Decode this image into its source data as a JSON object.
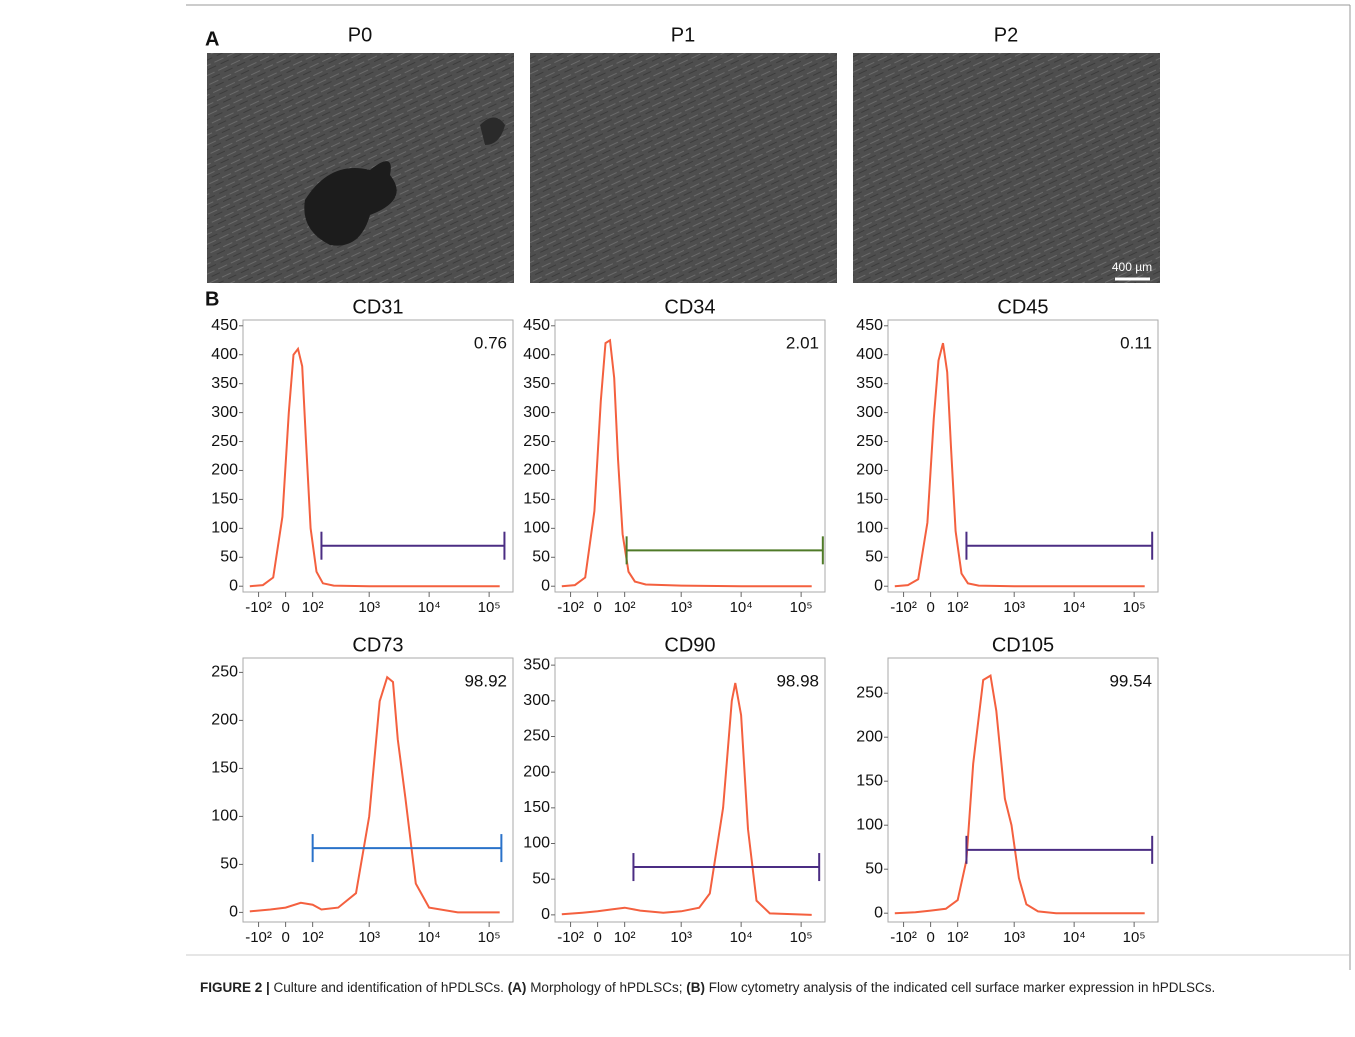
{
  "panel_labels": [
    "A",
    "B"
  ],
  "micrographs": [
    {
      "label": "P0"
    },
    {
      "label": "P1"
    },
    {
      "label": "P2"
    }
  ],
  "scale_bar": "400 µm",
  "chart_data": [
    {
      "type": "line",
      "title": "CD31",
      "color": "#f4603f",
      "x": [
        -150,
        -80,
        -40,
        -10,
        10,
        25,
        40,
        55,
        70,
        90,
        120,
        160,
        250,
        1000,
        10000,
        150000
      ],
      "values": [
        0,
        2,
        15,
        120,
        300,
        400,
        410,
        380,
        250,
        100,
        25,
        5,
        1,
        0,
        0,
        0
      ],
      "xlim": [
        -200,
        250000
      ],
      "ylim": [
        -10,
        460
      ],
      "xticks": [
        {
          "value": -100,
          "label": "-10²"
        },
        0,
        {
          "value": 100,
          "label": "10²"
        },
        {
          "value": 1000,
          "label": "10³"
        },
        {
          "value": 10000,
          "label": "10⁴"
        },
        {
          "value": 100000,
          "label": "10⁵"
        }
      ],
      "yticks": [
        0,
        50,
        100,
        150,
        200,
        250,
        300,
        350,
        400,
        450
      ],
      "gate": {
        "range": [
          150,
          180000
        ],
        "level": 70,
        "color": "#4b2d83",
        "value": 0.76
      }
    },
    {
      "type": "line",
      "title": "CD34",
      "color": "#f4603f",
      "x": [
        -150,
        -80,
        -40,
        -10,
        10,
        25,
        40,
        55,
        70,
        90,
        120,
        160,
        250,
        1000,
        10000,
        150000
      ],
      "values": [
        0,
        2,
        15,
        130,
        320,
        420,
        425,
        360,
        220,
        90,
        25,
        8,
        3,
        1,
        0,
        0
      ],
      "xlim": [
        -200,
        250000
      ],
      "ylim": [
        -10,
        460
      ],
      "xticks": [
        {
          "value": -100,
          "label": "-10²"
        },
        0,
        {
          "value": 100,
          "label": "10²"
        },
        {
          "value": 1000,
          "label": "10³"
        },
        {
          "value": 10000,
          "label": "10⁴"
        },
        {
          "value": 100000,
          "label": "10⁵"
        }
      ],
      "yticks": [
        0,
        50,
        100,
        150,
        200,
        250,
        300,
        350,
        400,
        450
      ],
      "gate": {
        "range": [
          110,
          230000
        ],
        "level": 62,
        "color": "#4f7a28",
        "value": 2.01
      }
    },
    {
      "type": "line",
      "title": "CD45",
      "color": "#f4603f",
      "x": [
        -150,
        -80,
        -40,
        -10,
        10,
        25,
        40,
        55,
        70,
        90,
        120,
        160,
        250,
        1000,
        10000,
        150000
      ],
      "values": [
        0,
        2,
        12,
        110,
        290,
        390,
        420,
        370,
        240,
        95,
        22,
        5,
        1,
        0,
        0,
        0
      ],
      "xlim": [
        -200,
        250000
      ],
      "ylim": [
        -10,
        460
      ],
      "xticks": [
        {
          "value": -100,
          "label": "-10²"
        },
        0,
        {
          "value": 100,
          "label": "10²"
        },
        {
          "value": 1000,
          "label": "10³"
        },
        {
          "value": 10000,
          "label": "10⁴"
        },
        {
          "value": 100000,
          "label": "10⁵"
        }
      ],
      "yticks": [
        0,
        50,
        100,
        150,
        200,
        250,
        300,
        350,
        400,
        450
      ],
      "gate": {
        "range": [
          150,
          200000
        ],
        "level": 70,
        "color": "#4b2d83",
        "value": 0.11
      }
    },
    {
      "type": "line",
      "title": "CD73",
      "color": "#f4603f",
      "x": [
        -150,
        -50,
        0,
        50,
        100,
        150,
        300,
        600,
        1000,
        1500,
        2000,
        2500,
        3000,
        4000,
        6000,
        10000,
        30000,
        150000
      ],
      "values": [
        1,
        3,
        5,
        10,
        8,
        3,
        5,
        20,
        100,
        220,
        245,
        240,
        180,
        120,
        30,
        5,
        0,
        0
      ],
      "xlim": [
        -200,
        250000
      ],
      "ylim": [
        -10,
        265
      ],
      "xticks": [
        {
          "value": -100,
          "label": "-10²"
        },
        0,
        {
          "value": 100,
          "label": "10²"
        },
        {
          "value": 1000,
          "label": "10³"
        },
        {
          "value": 10000,
          "label": "10⁴"
        },
        {
          "value": 100000,
          "label": "10⁵"
        }
      ],
      "yticks": [
        0,
        50,
        100,
        150,
        200,
        250
      ],
      "gate": {
        "range": [
          100,
          160000
        ],
        "level": 67,
        "color": "#2a72c9",
        "value": 98.92
      }
    },
    {
      "type": "line",
      "title": "CD90",
      "color": "#f4603f",
      "x": [
        -150,
        -50,
        0,
        50,
        100,
        200,
        500,
        1000,
        2000,
        3000,
        5000,
        7000,
        8000,
        10000,
        13000,
        18000,
        30000,
        150000
      ],
      "values": [
        1,
        3,
        5,
        8,
        10,
        6,
        3,
        5,
        10,
        30,
        150,
        300,
        325,
        280,
        120,
        20,
        2,
        0
      ],
      "xlim": [
        -200,
        250000
      ],
      "ylim": [
        -10,
        360
      ],
      "xticks": [
        {
          "value": -100,
          "label": "-10²"
        },
        0,
        {
          "value": 100,
          "label": "10²"
        },
        {
          "value": 1000,
          "label": "10³"
        },
        {
          "value": 10000,
          "label": "10⁴"
        },
        {
          "value": 100000,
          "label": "10⁵"
        }
      ],
      "yticks": [
        0,
        50,
        100,
        150,
        200,
        250,
        300,
        350
      ],
      "gate": {
        "range": [
          150,
          200000
        ],
        "level": 67,
        "color": "#4b2d83",
        "value": 98.98
      }
    },
    {
      "type": "line",
      "title": "CD105",
      "color": "#f4603f",
      "x": [
        -150,
        -50,
        0,
        50,
        100,
        150,
        200,
        300,
        400,
        500,
        700,
        900,
        1200,
        1600,
        2500,
        5000,
        150000
      ],
      "values": [
        0,
        1,
        3,
        5,
        15,
        60,
        170,
        265,
        270,
        230,
        130,
        100,
        40,
        10,
        2,
        0,
        0
      ],
      "xlim": [
        -200,
        250000
      ],
      "ylim": [
        -10,
        290
      ],
      "xticks": [
        {
          "value": -100,
          "label": "-10²"
        },
        0,
        {
          "value": 100,
          "label": "10²"
        },
        {
          "value": 1000,
          "label": "10³"
        },
        {
          "value": 10000,
          "label": "10⁴"
        },
        {
          "value": 100000,
          "label": "10⁵"
        }
      ],
      "yticks": [
        0,
        50,
        100,
        150,
        200,
        250
      ],
      "gate": {
        "range": [
          150,
          200000
        ],
        "level": 72,
        "color": "#4b2d83",
        "value": 99.54
      }
    }
  ],
  "caption": {
    "label": "FIGURE 2 |",
    "t1": " Culture and identification of hPDLSCs. ",
    "a": "(A)",
    "t2": " Morphology of hPDLSCs; ",
    "b": "(B)",
    "t3": " Flow cytometry analysis of the indicated cell surface marker expression in hPDLSCs."
  }
}
